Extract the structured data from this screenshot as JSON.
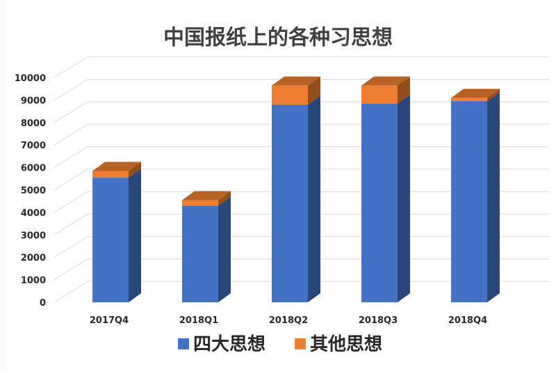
{
  "chart_data": {
    "type": "bar",
    "stacked": true,
    "three_d": true,
    "title": "中国报纸上的各种习思想",
    "categories": [
      "2017Q4",
      "2018Q1",
      "2018Q2",
      "2018Q3",
      "2018Q4"
    ],
    "series": [
      {
        "name": "四大思想",
        "color": "#4472c4",
        "values": [
          5550,
          4300,
          8800,
          8850,
          8950
        ]
      },
      {
        "name": "其他思想",
        "color": "#ed7d31",
        "values": [
          300,
          250,
          850,
          800,
          150
        ]
      }
    ],
    "ylim": [
      0,
      10000
    ],
    "yticks": [
      "0",
      "1000",
      "2000",
      "3000",
      "4000",
      "5000",
      "6000",
      "7000",
      "8000",
      "9000",
      "10000"
    ],
    "grid": true,
    "legend_position": "bottom"
  }
}
